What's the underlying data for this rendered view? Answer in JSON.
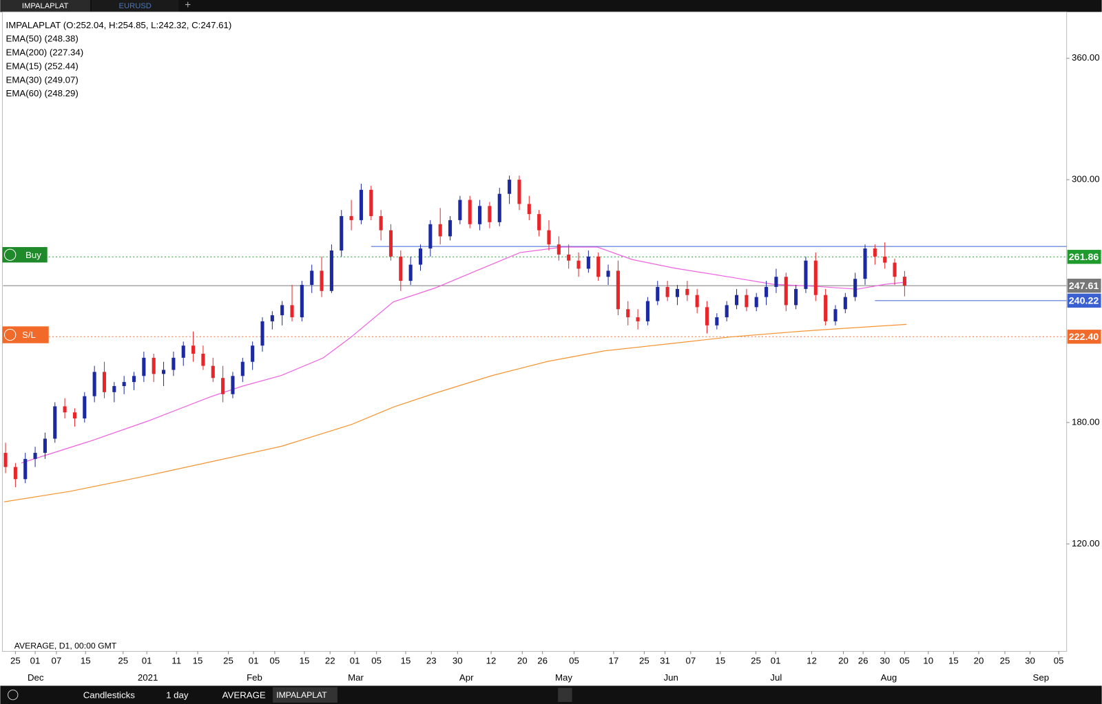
{
  "tabs": [
    "IMPALAPLAT",
    "EURUSD"
  ],
  "legend": {
    "ohlc": "IMPALAPLAT (O:252.04, H:254.85, L:242.32, C:247.61)",
    "indicators": [
      "EMA(50) (248.38)",
      "EMA(200) (227.34)",
      "EMA(15) (252.44)",
      "EMA(30) (249.07)",
      "EMA(60) (248.29)"
    ]
  },
  "buttons": {
    "buy": "Buy",
    "sl": "S/L"
  },
  "footer_note": "AVERAGE, D1, 00:00 GMT",
  "toolbar": [
    "Candlesticks",
    "1 day",
    "AVERAGE",
    "IMPALAPLAT"
  ],
  "chart_data": {
    "type": "candlestick",
    "up_color": "#1b2aa0",
    "down_color": "#e8262a",
    "x": [
      -6,
      -4,
      -2,
      0,
      2,
      4,
      6,
      8,
      10,
      12,
      14,
      16,
      18,
      20,
      22,
      24,
      26,
      28,
      30,
      32,
      34,
      36,
      38,
      40,
      42,
      44,
      46,
      48,
      50,
      52,
      54,
      56,
      58,
      60,
      62,
      64,
      66,
      68,
      70,
      72,
      74,
      76,
      78,
      80,
      82,
      84,
      86,
      88,
      90,
      92,
      94,
      96,
      98,
      100,
      102,
      104,
      106,
      108,
      110,
      112,
      114,
      116,
      118,
      120,
      122,
      124,
      126,
      128,
      130,
      132,
      134,
      136,
      138,
      140,
      142,
      144,
      146,
      148,
      150,
      152,
      154,
      156,
      158,
      160,
      162,
      164,
      166,
      168,
      170,
      172,
      174,
      176
    ],
    "open": [
      165,
      158,
      152,
      162,
      165,
      172,
      188,
      185,
      182,
      193,
      205,
      195,
      198,
      200,
      203,
      212,
      204,
      206,
      212,
      218,
      214,
      208,
      202,
      194,
      203,
      210,
      218,
      230,
      233,
      238,
      232,
      248,
      255,
      245,
      265,
      282,
      280,
      295,
      282,
      275,
      262,
      250,
      258,
      266,
      278,
      272,
      280,
      290,
      278,
      287,
      279,
      293,
      300,
      288,
      283,
      275,
      268,
      263,
      260,
      256,
      262,
      252,
      255,
      236,
      232,
      230,
      240,
      247,
      242,
      246,
      243,
      237,
      228,
      232,
      238,
      243,
      237,
      242,
      247,
      252,
      238,
      246,
      260,
      243,
      230,
      236,
      242,
      251,
      266,
      262,
      259,
      252.04
    ],
    "high": [
      170,
      160,
      165,
      168,
      175,
      190,
      192,
      187,
      195,
      208,
      210,
      200,
      203,
      205,
      215,
      214,
      210,
      215,
      220,
      225,
      218,
      212,
      208,
      205,
      212,
      220,
      232,
      235,
      240,
      248,
      250,
      258,
      262,
      268,
      285,
      290,
      298,
      297,
      285,
      278,
      265,
      262,
      268,
      280,
      286,
      282,
      292,
      292,
      290,
      289,
      296,
      302,
      302,
      292,
      285,
      280,
      272,
      268,
      264,
      265,
      264,
      258,
      260,
      240,
      236,
      242,
      250,
      250,
      248,
      250,
      246,
      240,
      234,
      240,
      246,
      246,
      244,
      250,
      256,
      254,
      248,
      262,
      264,
      246,
      238,
      244,
      254,
      268,
      268,
      269,
      261,
      254.85
    ],
    "low": [
      155,
      148,
      150,
      158,
      162,
      170,
      182,
      178,
      180,
      190,
      192,
      190,
      194,
      196,
      200,
      200,
      198,
      203,
      208,
      210,
      206,
      200,
      190,
      192,
      200,
      206,
      215,
      226,
      228,
      230,
      230,
      244,
      242,
      244,
      262,
      275,
      278,
      280,
      270,
      260,
      245,
      248,
      255,
      262,
      268,
      270,
      278,
      276,
      275,
      276,
      277,
      288,
      285,
      280,
      272,
      265,
      260,
      256,
      252,
      254,
      250,
      248,
      233,
      228,
      226,
      228,
      238,
      240,
      238,
      240,
      234,
      224,
      226,
      230,
      236,
      235,
      235,
      238,
      244,
      235,
      236,
      244,
      240,
      228,
      228,
      234,
      240,
      248,
      258,
      256,
      248,
      242.32
    ],
    "close": [
      158,
      152,
      162,
      165,
      172,
      188,
      185,
      182,
      193,
      205,
      195,
      198,
      200,
      203,
      212,
      204,
      206,
      212,
      218,
      214,
      208,
      202,
      194,
      203,
      210,
      218,
      230,
      233,
      238,
      232,
      248,
      255,
      245,
      265,
      282,
      280,
      295,
      282,
      275,
      262,
      250,
      258,
      266,
      278,
      272,
      280,
      290,
      278,
      287,
      279,
      293,
      300,
      288,
      283,
      275,
      268,
      263,
      260,
      256,
      262,
      252,
      255,
      236,
      232,
      230,
      240,
      247,
      242,
      246,
      243,
      237,
      228,
      232,
      238,
      243,
      237,
      242,
      247,
      252,
      238,
      246,
      260,
      243,
      230,
      236,
      242,
      251,
      266,
      262,
      259,
      252,
      247.61
    ],
    "ema_lines": [
      {
        "color": "#f060e0",
        "x": [
          -2.8,
          11.4,
          22.8,
          35.6,
          42,
          49.8,
          58.3,
          64,
          72.5,
          81.1,
          89.6,
          98.2,
          106.7,
          113.8,
          120.9,
          129.4,
          140.8,
          149.4,
          157.9,
          166.4,
          172.1,
          176.4
        ],
        "values": [
          160,
          171,
          180.7,
          192.8,
          198,
          203.2,
          211.9,
          222.3,
          239.6,
          246.6,
          255.3,
          264,
          266.7,
          266.7,
          260.5,
          256.3,
          251.8,
          248.3,
          247.3,
          245.9,
          248.3,
          249.4
        ]
      },
      {
        "color": "#f7932f",
        "x": [
          -6.3,
          7.1,
          21.3,
          35.6,
          49.8,
          64,
          72.5,
          81.1,
          92.5,
          103.8,
          115.2,
          127.9,
          140.8,
          155,
          163.5,
          176.4
        ],
        "values": [
          140.8,
          146,
          153,
          160.6,
          168.2,
          179,
          187.6,
          194.6,
          203.2,
          210.2,
          215.4,
          218.8,
          222.3,
          225.1,
          226.5,
          228.5
        ]
      }
    ],
    "levels": [
      {
        "value": 267,
        "color": "#3a5fd0",
        "from": 68
      },
      {
        "value": 261.86,
        "label": "261.86",
        "color": "#1f9b2e",
        "dash": true
      },
      {
        "value": 247.61,
        "label": "247.61",
        "color": "#777777"
      },
      {
        "value": 240.22,
        "label": "240.22",
        "color": "#3a5fd0",
        "from": 170
      },
      {
        "value": 222.4,
        "label": "222.40",
        "color": "#f26a2a",
        "dash": true
      }
    ],
    "ylim": [
      66.9,
      382.9
    ],
    "yticks": [
      {
        "value": 120,
        "label": "120.00"
      },
      {
        "value": 180,
        "label": "180.00"
      },
      {
        "value": 300,
        "label": "300.00"
      },
      {
        "value": 360,
        "label": "360.00"
      }
    ],
    "xlim": [
      -6.5,
      208.8
    ],
    "xticks": [
      {
        "value": -4,
        "label": "25"
      },
      {
        "value": 0,
        "label": "01"
      },
      {
        "value": 4.3,
        "label": "07"
      },
      {
        "value": 10.2,
        "label": "15"
      },
      {
        "value": 17.8,
        "label": "25"
      },
      {
        "value": 22.6,
        "label": "01"
      },
      {
        "value": 28.6,
        "label": "11"
      },
      {
        "value": 32.9,
        "label": "15"
      },
      {
        "value": 39.1,
        "label": "25"
      },
      {
        "value": 44.2,
        "label": "01"
      },
      {
        "value": 48.5,
        "label": "05"
      },
      {
        "value": 54.5,
        "label": "15"
      },
      {
        "value": 59.7,
        "label": "22"
      },
      {
        "value": 64.7,
        "label": "01"
      },
      {
        "value": 69.1,
        "label": "05"
      },
      {
        "value": 75,
        "label": "15"
      },
      {
        "value": 80.2,
        "label": "23"
      },
      {
        "value": 85.5,
        "label": "30"
      },
      {
        "value": 92.3,
        "label": "12"
      },
      {
        "value": 98.6,
        "label": "20"
      },
      {
        "value": 102.7,
        "label": "26"
      },
      {
        "value": 109.1,
        "label": "05"
      },
      {
        "value": 117.1,
        "label": "17"
      },
      {
        "value": 123.3,
        "label": "25"
      },
      {
        "value": 127.5,
        "label": "31"
      },
      {
        "value": 132.7,
        "label": "07"
      },
      {
        "value": 138.7,
        "label": "15"
      },
      {
        "value": 145.9,
        "label": "25"
      },
      {
        "value": 149.9,
        "label": "01"
      },
      {
        "value": 157.2,
        "label": "12"
      },
      {
        "value": 163.6,
        "label": "20"
      },
      {
        "value": 167.6,
        "label": "26"
      },
      {
        "value": 172,
        "label": "30"
      },
      {
        "value": 176,
        "label": "05"
      },
      {
        "value": 180.8,
        "label": "10"
      },
      {
        "value": 185.9,
        "label": "15"
      },
      {
        "value": 191,
        "label": "20"
      },
      {
        "value": 196.3,
        "label": "25"
      },
      {
        "value": 201.4,
        "label": "30"
      },
      {
        "value": 207.2,
        "label": "05"
      }
    ],
    "month_labels": [
      {
        "value": 0.1,
        "label": "Dec"
      },
      {
        "value": 22.8,
        "label": "2021"
      },
      {
        "value": 44.4,
        "label": "Feb"
      },
      {
        "value": 64.9,
        "label": "Mar"
      },
      {
        "value": 87.3,
        "label": "Apr"
      },
      {
        "value": 107,
        "label": "May"
      },
      {
        "value": 128.7,
        "label": "Jun"
      },
      {
        "value": 150,
        "label": "Jul"
      },
      {
        "value": 172.8,
        "label": "Aug"
      },
      {
        "value": 203.6,
        "label": "Sep"
      }
    ]
  }
}
